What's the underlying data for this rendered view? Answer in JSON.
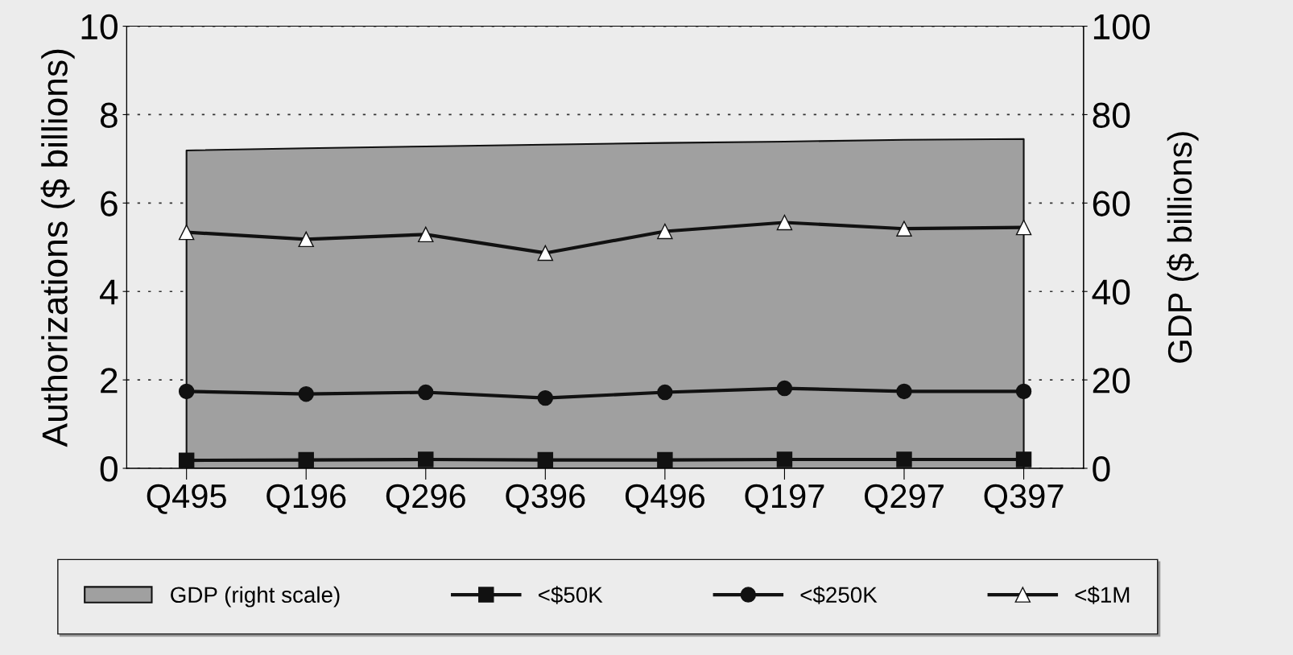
{
  "chart_data": {
    "type": "line",
    "ylabel": "Authorizations ($ billions)",
    "y2label": "GDP ($ billions)",
    "categories": [
      "Q495",
      "Q196",
      "Q296",
      "Q396",
      "Q496",
      "Q197",
      "Q297",
      "Q397"
    ],
    "series": [
      {
        "name": "GDP (right scale)",
        "type": "area",
        "axis": "y2",
        "color": "#a0a0a0",
        "values": [
          71.9,
          72.4,
          72.8,
          73.2,
          73.6,
          73.9,
          74.3,
          74.5
        ]
      },
      {
        "name": "<$50K",
        "color": "#111111",
        "marker": "square",
        "values": [
          0.18,
          0.19,
          0.2,
          0.19,
          0.19,
          0.2,
          0.2,
          0.2
        ]
      },
      {
        "name": "<$250K",
        "color": "#111111",
        "marker": "circle",
        "values": [
          1.74,
          1.68,
          1.72,
          1.59,
          1.72,
          1.81,
          1.74,
          1.74
        ]
      },
      {
        "name": "<$1M",
        "color": "#111111",
        "marker": "triangle",
        "values": [
          5.34,
          5.18,
          5.29,
          4.87,
          5.36,
          5.56,
          5.42,
          5.45
        ]
      }
    ],
    "ylim": [
      0,
      10
    ],
    "yticks": [
      0,
      2,
      4,
      6,
      8,
      10
    ],
    "y2lim": [
      0,
      100
    ],
    "y2ticks": [
      0,
      20,
      40,
      60,
      80,
      100
    ],
    "grid": "y",
    "legend": "bottom"
  }
}
